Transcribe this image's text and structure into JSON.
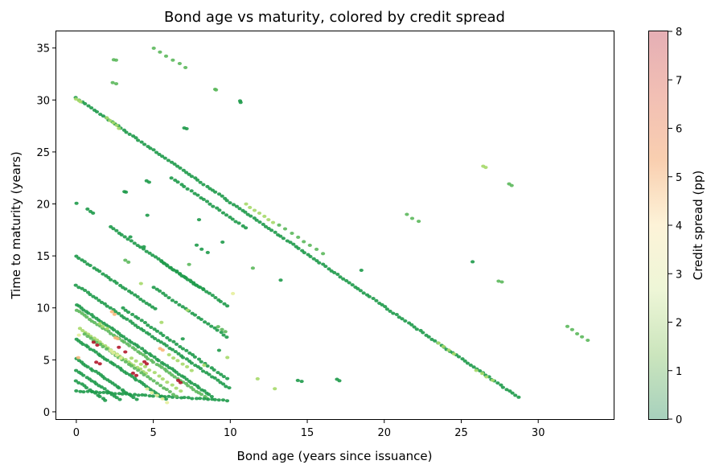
{
  "chart_data": {
    "type": "scatter",
    "title": "Bond age vs maturity, colored by credit spread",
    "xlabel": "Bond age (years since issuance)",
    "ylabel": "Time to maturity (years)",
    "xlim": [
      -1.3,
      34.9
    ],
    "ylim": [
      -0.7,
      36.6
    ],
    "xticks": [
      "0",
      "5",
      "10",
      "15",
      "20",
      "25",
      "30"
    ],
    "yticks": [
      "0",
      "5",
      "10",
      "15",
      "20",
      "25",
      "30",
      "35"
    ],
    "grid": false,
    "legend": "none",
    "colorbar": {
      "label": "Credit spread (pp)",
      "range": [
        0,
        8
      ],
      "ticks": [
        "0",
        "1",
        "2",
        "3",
        "4",
        "5",
        "6",
        "7",
        "8"
      ],
      "colormap": "RdYlGn_r",
      "colors": [
        "#a7d1bd",
        "#cbe5bd",
        "#eef6d7",
        "#fdf3d8",
        "#f9cfb0",
        "#f2bfb4",
        "#e5afb5"
      ]
    },
    "point_colors": {
      "low": "#1e9a4a",
      "mid": "#5cb85c",
      "lightgreen": "#a6d96a",
      "yellow": "#e6ee9c",
      "orange": "#f7b77a",
      "red": "#b2182b"
    },
    "series": [
      {
        "segments": [
          {
            "x0": 0.0,
            "y0": 30.2,
            "x1": 28.7,
            "y1": 1.4,
            "n": 150,
            "color": "low"
          },
          {
            "x0": 5.0,
            "y0": 35.0,
            "x1": 7.1,
            "y1": 33.1,
            "n": 6,
            "color": "mid"
          },
          {
            "x0": 2.4,
            "y0": 33.9,
            "x1": 2.6,
            "y1": 33.8,
            "n": 2,
            "color": "mid"
          },
          {
            "x0": 2.4,
            "y0": 31.7,
            "x1": 2.6,
            "y1": 31.6,
            "n": 2,
            "color": "mid"
          },
          {
            "x0": 9.0,
            "y0": 31.0,
            "x1": 9.1,
            "y1": 31.0,
            "n": 2,
            "color": "mid"
          },
          {
            "x0": 10.6,
            "y0": 29.9,
            "x1": 10.7,
            "y1": 29.8,
            "n": 2,
            "color": "low"
          },
          {
            "x0": 0.0,
            "y0": 20.1,
            "x1": 0.1,
            "y1": 20.0,
            "n": 1,
            "color": "low"
          },
          {
            "x0": 0.7,
            "y0": 19.5,
            "x1": 1.1,
            "y1": 19.1,
            "n": 3,
            "color": "low"
          },
          {
            "x0": 2.2,
            "y0": 17.8,
            "x1": 9.8,
            "y1": 10.2,
            "n": 40,
            "color": "low"
          },
          {
            "x0": 0.0,
            "y0": 15.0,
            "x1": 5.1,
            "y1": 9.9,
            "n": 28,
            "color": "low"
          },
          {
            "x0": 0.0,
            "y0": 12.2,
            "x1": 9.9,
            "y1": 2.3,
            "n": 55,
            "color": "low"
          },
          {
            "x0": 0.0,
            "y0": 10.3,
            "x1": 8.8,
            "y1": 1.5,
            "n": 55,
            "color": "low"
          },
          {
            "x0": 0.0,
            "y0": 9.8,
            "x1": 8.5,
            "y1": 1.3,
            "n": 50,
            "color": "mid"
          },
          {
            "x0": 0.0,
            "y0": 7.0,
            "x1": 5.8,
            "y1": 1.2,
            "n": 38,
            "color": "low"
          },
          {
            "x0": 0.0,
            "y0": 5.1,
            "x1": 3.9,
            "y1": 1.2,
            "n": 26,
            "color": "low"
          },
          {
            "x0": 0.0,
            "y0": 4.0,
            "x1": 2.8,
            "y1": 1.2,
            "n": 18,
            "color": "low"
          },
          {
            "x0": 0.0,
            "y0": 3.0,
            "x1": 1.9,
            "y1": 1.1,
            "n": 12,
            "color": "low"
          },
          {
            "x0": 0.0,
            "y0": 2.0,
            "x1": 9.8,
            "y1": 1.1,
            "n": 40,
            "color": "low"
          },
          {
            "x0": 0.2,
            "y0": 8.0,
            "x1": 4.5,
            "y1": 3.7,
            "n": 24,
            "color": "lightgreen"
          },
          {
            "x0": 0.5,
            "y0": 7.5,
            "x1": 6.5,
            "y1": 1.5,
            "n": 30,
            "color": "mid"
          },
          {
            "x0": 3.0,
            "y0": 10.0,
            "x1": 9.8,
            "y1": 3.2,
            "n": 34,
            "color": "low"
          },
          {
            "x0": 5.0,
            "y0": 12.0,
            "x1": 9.8,
            "y1": 7.2,
            "n": 24,
            "color": "low"
          },
          {
            "x0": 5.5,
            "y0": 14.5,
            "x1": 8.2,
            "y1": 11.8,
            "n": 14,
            "color": "low"
          },
          {
            "x0": 6.2,
            "y0": 22.5,
            "x1": 11.0,
            "y1": 17.7,
            "n": 24,
            "color": "low"
          },
          {
            "x0": 7.0,
            "y0": 27.3,
            "x1": 7.2,
            "y1": 27.2,
            "n": 2,
            "color": "low"
          },
          {
            "x0": 3.1,
            "y0": 21.2,
            "x1": 3.2,
            "y1": 21.1,
            "n": 2,
            "color": "low"
          },
          {
            "x0": 4.6,
            "y0": 22.2,
            "x1": 4.7,
            "y1": 22.1,
            "n": 2,
            "color": "low"
          },
          {
            "x0": 14.4,
            "y0": 3.0,
            "x1": 14.6,
            "y1": 2.9,
            "n": 2,
            "color": "low"
          },
          {
            "x0": 16.9,
            "y0": 3.1,
            "x1": 17.1,
            "y1": 3.0,
            "n": 2,
            "color": "low"
          },
          {
            "x0": 21.5,
            "y0": 19.0,
            "x1": 22.2,
            "y1": 18.3,
            "n": 3,
            "color": "mid"
          },
          {
            "x0": 26.4,
            "y0": 23.6,
            "x1": 26.6,
            "y1": 23.5,
            "n": 2,
            "color": "lightgreen"
          },
          {
            "x0": 28.1,
            "y0": 21.9,
            "x1": 28.3,
            "y1": 21.8,
            "n": 2,
            "color": "mid"
          },
          {
            "x0": 25.7,
            "y0": 14.4,
            "x1": 25.8,
            "y1": 14.3,
            "n": 1,
            "color": "low"
          },
          {
            "x0": 27.4,
            "y0": 12.6,
            "x1": 27.6,
            "y1": 12.5,
            "n": 2,
            "color": "mid"
          },
          {
            "x0": 31.9,
            "y0": 8.2,
            "x1": 33.2,
            "y1": 6.9,
            "n": 5,
            "color": "mid"
          },
          {
            "x0": 18.5,
            "y0": 13.6,
            "x1": 18.6,
            "y1": 13.5,
            "n": 1,
            "color": "low"
          },
          {
            "x0": 11.5,
            "y0": 13.8,
            "x1": 11.6,
            "y1": 13.7,
            "n": 1,
            "color": "mid"
          },
          {
            "x0": 13.3,
            "y0": 12.7,
            "x1": 13.4,
            "y1": 12.6,
            "n": 1,
            "color": "low"
          },
          {
            "x0": 11.0,
            "y0": 20.0,
            "x1": 12.8,
            "y1": 18.2,
            "n": 7,
            "color": "lightgreen"
          },
          {
            "x0": 13.2,
            "y0": 18.0,
            "x1": 16.0,
            "y1": 15.2,
            "n": 8,
            "color": "mid"
          },
          {
            "x0": 10.2,
            "y0": 11.4,
            "x1": 10.3,
            "y1": 11.3,
            "n": 1,
            "color": "yellow"
          },
          {
            "x0": 11.8,
            "y0": 3.2,
            "x1": 11.9,
            "y1": 3.1,
            "n": 1,
            "color": "lightgreen"
          },
          {
            "x0": 12.9,
            "y0": 2.2,
            "x1": 13.0,
            "y1": 2.1,
            "n": 1,
            "color": "lightgreen"
          },
          {
            "x0": 0.0,
            "y0": 30.1,
            "x1": 0.3,
            "y1": 29.8,
            "n": 3,
            "color": "lightgreen"
          },
          {
            "x0": 2.0,
            "y0": 28.3,
            "x1": 2.8,
            "y1": 27.3,
            "n": 5,
            "color": "lightgreen"
          },
          {
            "x0": 26.0,
            "y0": 4.0,
            "x1": 27.0,
            "y1": 3.0,
            "n": 4,
            "color": "lightgreen"
          },
          {
            "x0": 23.5,
            "y0": 6.6,
            "x1": 24.5,
            "y1": 5.6,
            "n": 4,
            "color": "lightgreen"
          },
          {
            "x0": 3.2,
            "y0": 14.6,
            "x1": 3.4,
            "y1": 14.4,
            "n": 2,
            "color": "mid"
          },
          {
            "x0": 3.6,
            "y0": 5.2,
            "x1": 6.8,
            "y1": 2.0,
            "n": 12,
            "color": "lightgreen"
          },
          {
            "x0": 1.1,
            "y0": 6.7,
            "x1": 1.4,
            "y1": 6.4,
            "n": 2,
            "color": "red"
          },
          {
            "x0": 2.8,
            "y0": 6.2,
            "x1": 3.2,
            "y1": 5.8,
            "n": 2,
            "color": "red"
          },
          {
            "x0": 4.4,
            "y0": 4.8,
            "x1": 4.6,
            "y1": 4.6,
            "n": 2,
            "color": "red"
          },
          {
            "x0": 1.3,
            "y0": 4.8,
            "x1": 1.5,
            "y1": 4.6,
            "n": 2,
            "color": "red"
          },
          {
            "x0": 3.7,
            "y0": 3.7,
            "x1": 3.9,
            "y1": 3.5,
            "n": 2,
            "color": "red"
          },
          {
            "x0": 6.6,
            "y0": 3.0,
            "x1": 6.8,
            "y1": 2.8,
            "n": 2,
            "color": "red"
          },
          {
            "x0": 2.5,
            "y0": 7.1,
            "x1": 2.7,
            "y1": 7.0,
            "n": 2,
            "color": "orange"
          },
          {
            "x0": 2.3,
            "y0": 9.6,
            "x1": 2.5,
            "y1": 9.4,
            "n": 2,
            "color": "orange"
          },
          {
            "x0": 5.4,
            "y0": 6.1,
            "x1": 5.6,
            "y1": 5.9,
            "n": 2,
            "color": "orange"
          },
          {
            "x0": 0.1,
            "y0": 5.2,
            "x1": 0.2,
            "y1": 5.1,
            "n": 1,
            "color": "orange"
          },
          {
            "x0": 0.2,
            "y0": 7.4,
            "x1": 0.3,
            "y1": 7.3,
            "n": 1,
            "color": "yellow"
          },
          {
            "x0": 2.2,
            "y0": 5.9,
            "x1": 2.9,
            "y1": 5.2,
            "n": 4,
            "color": "yellow"
          },
          {
            "x0": 4.6,
            "y0": 2.2,
            "x1": 5.9,
            "y1": 0.9,
            "n": 5,
            "color": "yellow"
          },
          {
            "x0": 1.5,
            "y0": 8.5,
            "x1": 2.0,
            "y1": 8.0,
            "n": 3,
            "color": "lightgreen"
          },
          {
            "x0": 6.0,
            "y0": 5.5,
            "x1": 7.5,
            "y1": 4.0,
            "n": 6,
            "color": "lightgreen"
          },
          {
            "x0": 4.2,
            "y0": 12.3,
            "x1": 4.3,
            "y1": 12.2,
            "n": 1,
            "color": "lightgreen"
          },
          {
            "x0": 5.5,
            "y0": 8.6,
            "x1": 5.6,
            "y1": 8.5,
            "n": 1,
            "color": "lightgreen"
          },
          {
            "x0": 7.2,
            "y0": 9.8,
            "x1": 7.3,
            "y1": 9.7,
            "n": 1,
            "color": "lightgreen"
          },
          {
            "x0": 9.8,
            "y0": 5.2,
            "x1": 9.9,
            "y1": 5.1,
            "n": 1,
            "color": "lightgreen"
          },
          {
            "x0": 4.4,
            "y0": 15.9,
            "x1": 4.5,
            "y1": 15.8,
            "n": 1,
            "color": "low"
          },
          {
            "x0": 7.8,
            "y0": 16.0,
            "x1": 8.5,
            "y1": 15.3,
            "n": 3,
            "color": "low"
          },
          {
            "x0": 8.0,
            "y0": 18.5,
            "x1": 8.1,
            "y1": 18.4,
            "n": 1,
            "color": "low"
          },
          {
            "x0": 9.5,
            "y0": 16.3,
            "x1": 9.6,
            "y1": 16.2,
            "n": 1,
            "color": "low"
          },
          {
            "x0": 3.5,
            "y0": 16.8,
            "x1": 3.6,
            "y1": 16.7,
            "n": 1,
            "color": "low"
          },
          {
            "x0": 4.6,
            "y0": 18.9,
            "x1": 4.7,
            "y1": 18.8,
            "n": 1,
            "color": "low"
          },
          {
            "x0": 9.2,
            "y0": 8.2,
            "x1": 9.7,
            "y1": 7.7,
            "n": 3,
            "color": "mid"
          },
          {
            "x0": 9.3,
            "y0": 5.9,
            "x1": 9.4,
            "y1": 5.8,
            "n": 1,
            "color": "low"
          },
          {
            "x0": 6.9,
            "y0": 7.0,
            "x1": 7.0,
            "y1": 6.9,
            "n": 1,
            "color": "low"
          },
          {
            "x0": 7.3,
            "y0": 14.2,
            "x1": 7.4,
            "y1": 14.1,
            "n": 1,
            "color": "mid"
          },
          {
            "x0": 8.3,
            "y0": 4.5,
            "x1": 8.4,
            "y1": 4.4,
            "n": 1,
            "color": "lightgreen"
          }
        ]
      }
    ]
  }
}
